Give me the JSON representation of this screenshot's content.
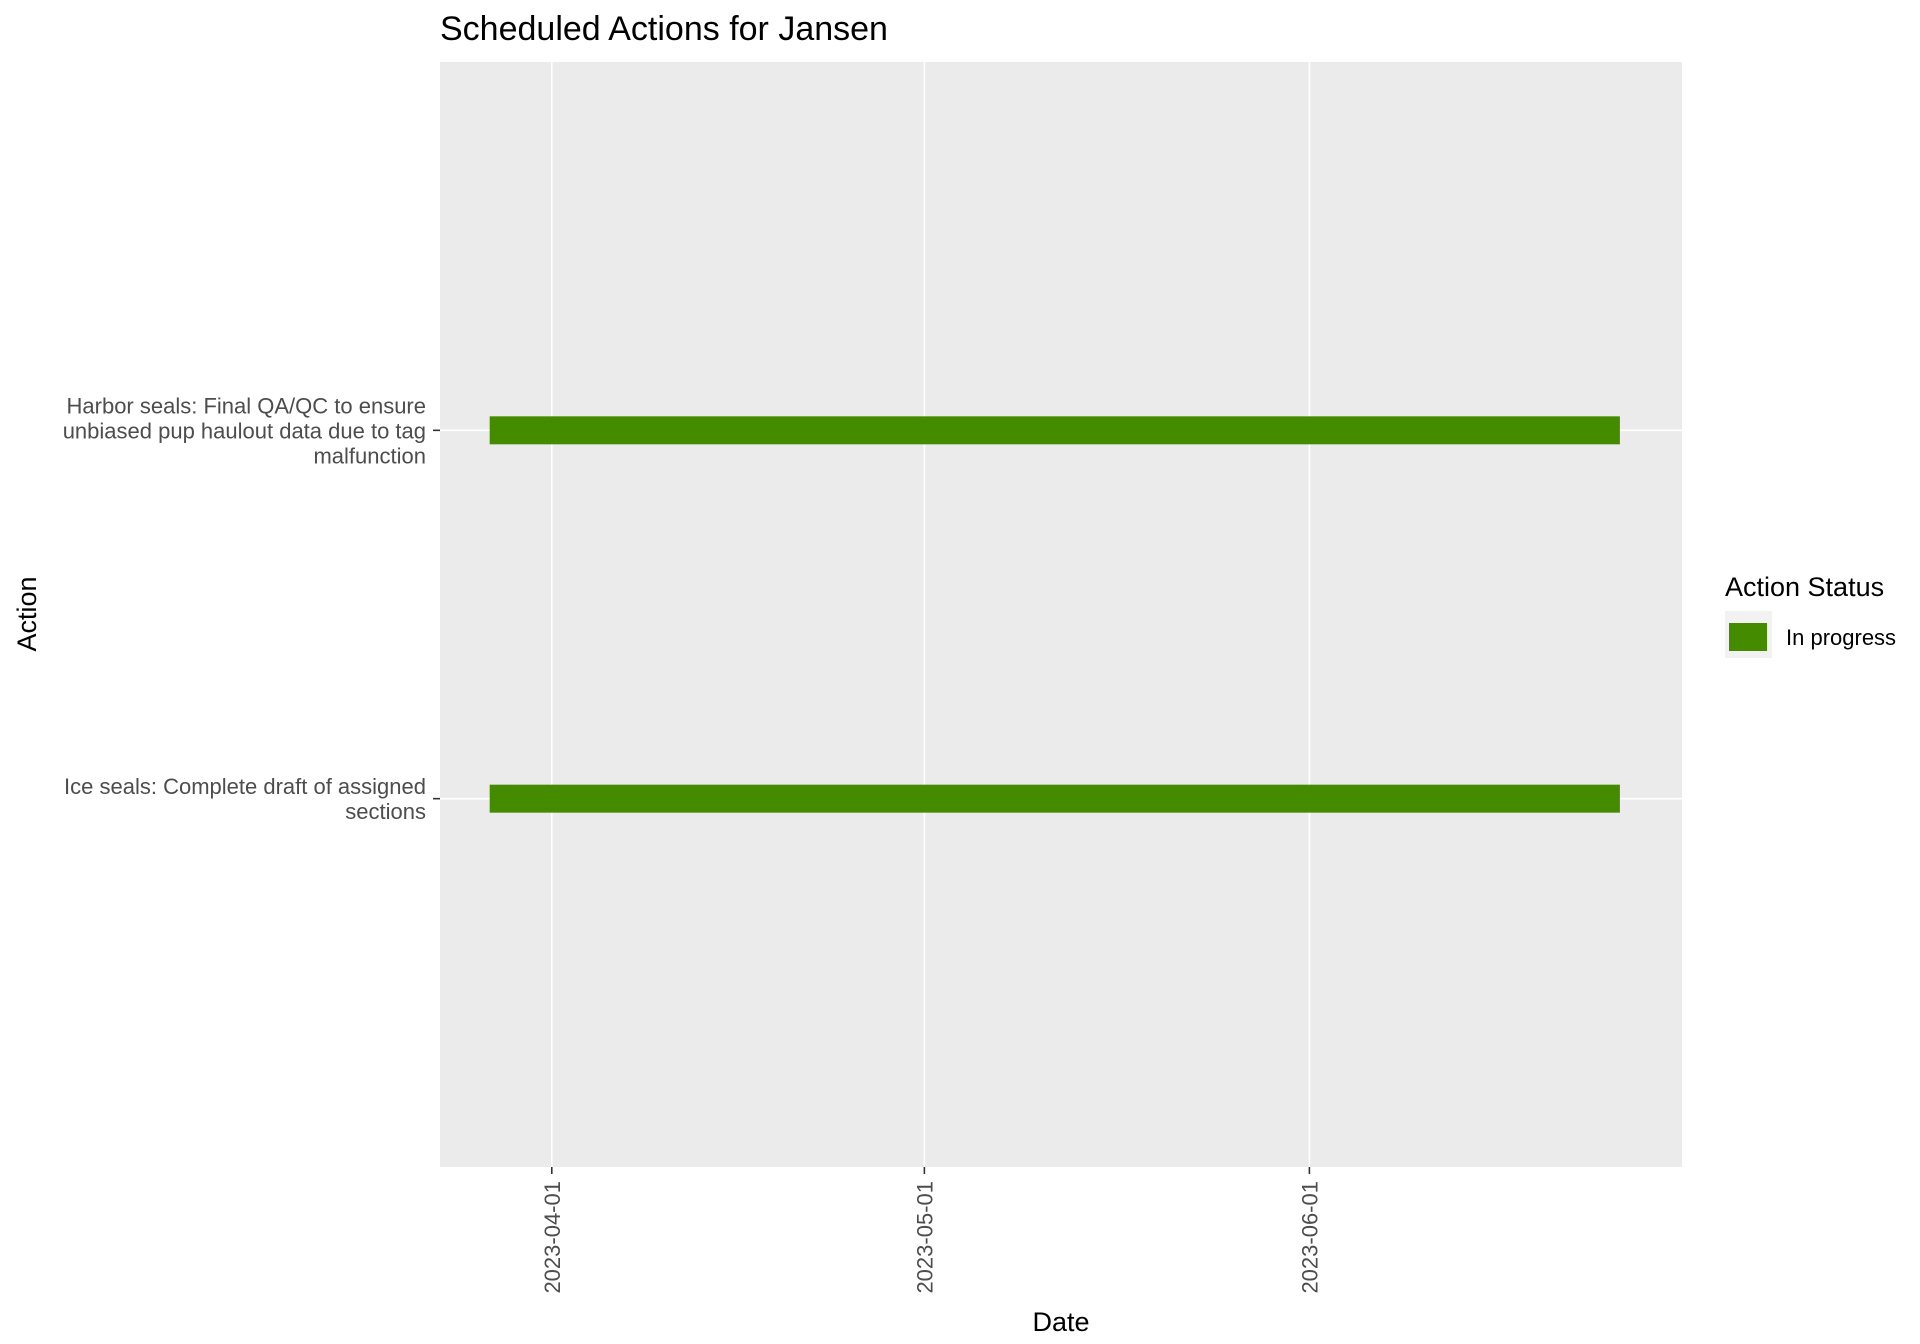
{
  "chart_data": {
    "type": "bar",
    "orientation": "horizontal",
    "title": "Scheduled Actions for Jansen",
    "xlabel": "Date",
    "ylabel": "Action",
    "x_axis": {
      "scale": "date",
      "ticks": [
        "2023-04-01",
        "2023-05-01",
        "2023-06-01"
      ],
      "range": [
        "2023-03-23",
        "2023-07-01"
      ]
    },
    "categories": [
      [
        "Ice seals: Complete draft of assigned",
        "sections"
      ],
      [
        "Harbor seals: Final QA/QC to ensure",
        "unbiased pup haulout data due to tag",
        "malfunction"
      ]
    ],
    "tasks": [
      {
        "category_index": 0,
        "start": "2023-03-27",
        "end": "2023-06-26",
        "status": "In progress"
      },
      {
        "category_index": 1,
        "start": "2023-03-27",
        "end": "2023-06-26",
        "status": "In progress"
      }
    ],
    "legend": {
      "title": "Action Status",
      "placement": "right",
      "entries": [
        {
          "label": "In progress",
          "color": "#458b00"
        }
      ]
    },
    "colors": {
      "panel": "#ebebeb",
      "grid": "#ffffff",
      "bar": "#458b00"
    },
    "grid": true
  }
}
